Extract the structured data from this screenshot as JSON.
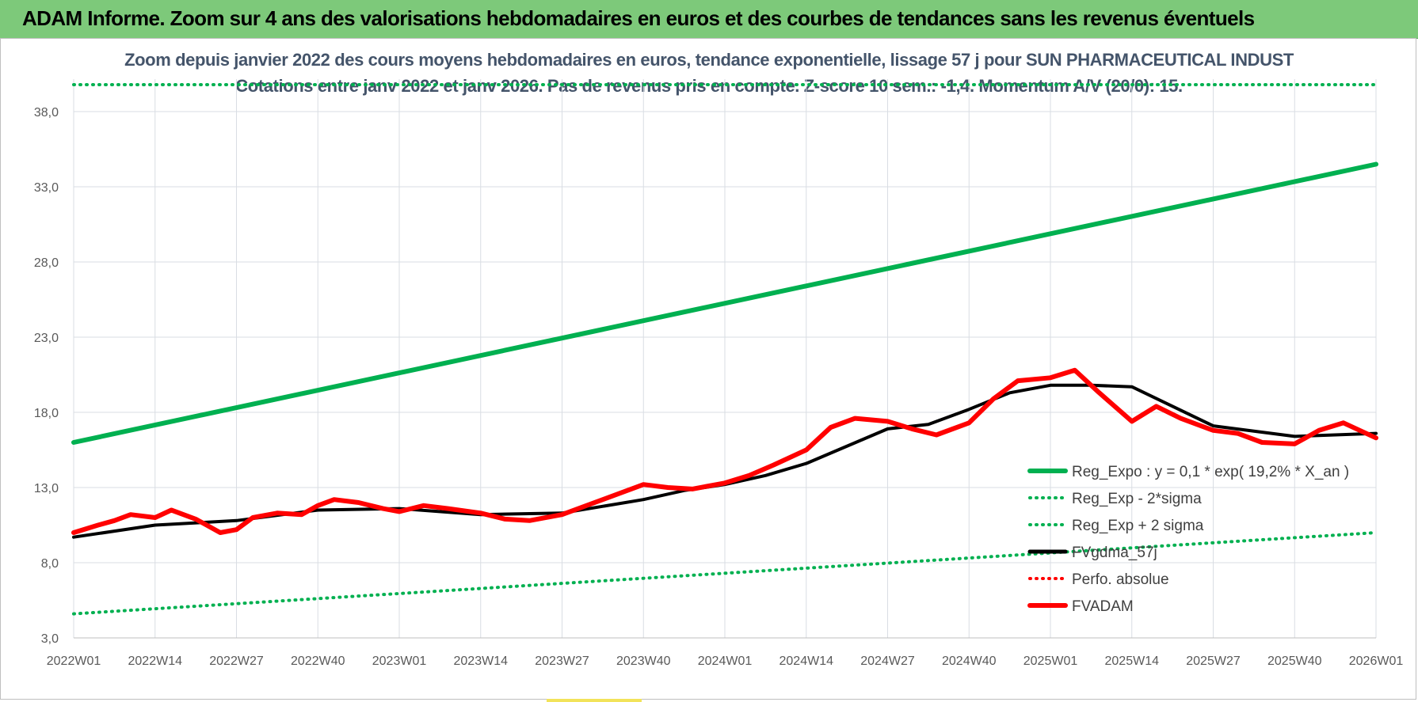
{
  "header": {
    "title": "ADAM Informe. Zoom sur 4 ans des valorisations hebdomadaires en euros et des courbes de tendances sans les revenus éventuels"
  },
  "chart_data": {
    "type": "line",
    "title_line1": "Zoom depuis janvier 2022 des cours moyens hebdomadaires en euros, tendance exponentielle, lissage 57 j pour SUN PHARMACEUTICAL INDUST",
    "title_line2": "Cotations entre janv 2022 et janv 2026. Pas de revenus pris en compte. Z-score 10 sem.: -1,4. Momentum A/V (20/0): 15.",
    "x_tick_labels": [
      "2022W01",
      "2022W14",
      "2022W27",
      "2022W40",
      "2023W01",
      "2023W14",
      "2023W27",
      "2023W40",
      "2024W01",
      "2024W14",
      "2024W27",
      "2024W40",
      "2025W01",
      "2025W14",
      "2025W27",
      "2025W40",
      "2026W01"
    ],
    "y_tick_labels": [
      "3,0",
      "8,0",
      "13,0",
      "18,0",
      "23,0",
      "28,0",
      "33,0",
      "38,0"
    ],
    "ylim": [
      3,
      39.5
    ],
    "grid": true,
    "legend_position": "bottom-right",
    "series": [
      {
        "name": "Reg_Expo : y = 0,1 * exp( 19,2% *  X_an )",
        "style": "solid",
        "color": "#00b050",
        "x_ticks": [
          0,
          16
        ],
        "values": [
          16.0,
          34.5
        ]
      },
      {
        "name": "Reg_Exp - 2*sigma",
        "style": "dotted",
        "color": "#00b050",
        "x_ticks": [
          0,
          16
        ],
        "values": [
          4.6,
          10.0
        ]
      },
      {
        "name": "Reg_Exp + 2 sigma",
        "style": "dotted",
        "color": "#00b050",
        "x_ticks": [
          0,
          16
        ],
        "values": [
          40.5,
          40.5
        ]
      },
      {
        "name": "FVgdma_57j",
        "style": "solid",
        "color": "#000000",
        "x_ticks": [
          0,
          1,
          2,
          3,
          4,
          5,
          6,
          7,
          7.5,
          8,
          8.5,
          9,
          10,
          10.5,
          11,
          11.5,
          12,
          12.5,
          13,
          14,
          15,
          16
        ],
        "values": [
          9.7,
          10.5,
          10.8,
          11.5,
          11.6,
          11.2,
          11.3,
          12.2,
          12.8,
          13.2,
          13.8,
          14.6,
          16.9,
          17.2,
          18.2,
          19.3,
          19.8,
          19.8,
          19.7,
          17.1,
          16.4,
          16.6
        ]
      },
      {
        "name": "Perfo. absolue",
        "style": "dotted",
        "color": "#ff0000",
        "x_ticks": [],
        "values": []
      },
      {
        "name": "FVADAM",
        "style": "solid",
        "color": "#ff0000",
        "x_ticks": [
          0,
          0.3,
          0.5,
          0.7,
          1,
          1.2,
          1.5,
          1.8,
          2,
          2.2,
          2.5,
          2.8,
          3,
          3.2,
          3.5,
          3.8,
          4,
          4.3,
          4.6,
          5,
          5.3,
          5.6,
          6,
          6.3,
          6.6,
          7,
          7.3,
          7.6,
          8,
          8.3,
          8.6,
          9,
          9.3,
          9.6,
          10,
          10.3,
          10.6,
          11,
          11.3,
          11.6,
          12,
          12.3,
          12.6,
          13,
          13.3,
          13.6,
          14,
          14.3,
          14.6,
          15,
          15.3,
          15.6,
          16
        ],
        "values": [
          10.0,
          10.5,
          10.8,
          11.2,
          11.0,
          11.5,
          10.9,
          10.0,
          10.2,
          11.0,
          11.3,
          11.2,
          11.8,
          12.2,
          12.0,
          11.6,
          11.4,
          11.8,
          11.6,
          11.3,
          10.9,
          10.8,
          11.2,
          11.8,
          12.4,
          13.2,
          13.0,
          12.9,
          13.3,
          13.8,
          14.5,
          15.5,
          17.0,
          17.6,
          17.4,
          16.9,
          16.5,
          17.3,
          18.9,
          20.1,
          20.3,
          20.8,
          19.3,
          17.4,
          18.4,
          17.6,
          16.8,
          16.6,
          16.0,
          15.9,
          16.8,
          17.3,
          16.3
        ]
      }
    ]
  }
}
